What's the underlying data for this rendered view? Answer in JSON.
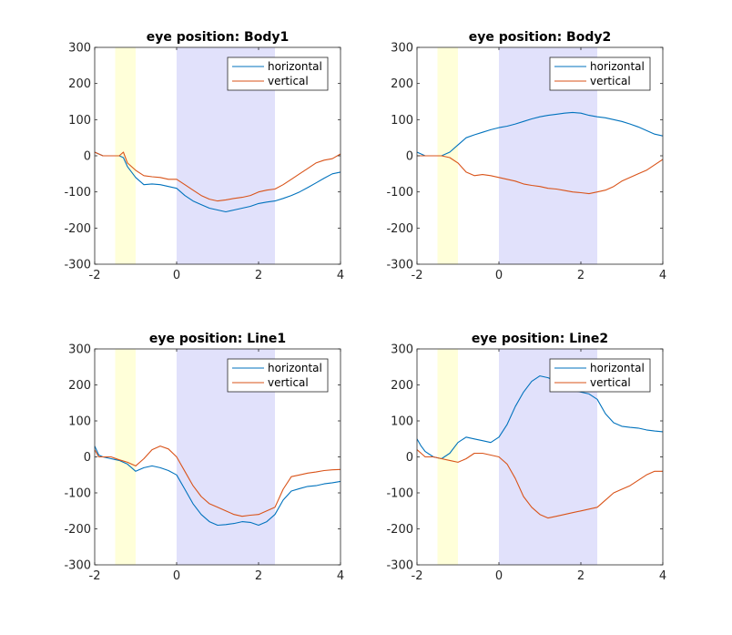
{
  "chart_data": [
    {
      "type": "line",
      "title": "eye position: Body1",
      "xlim": [
        -2,
        4
      ],
      "ylim": [
        -300,
        300
      ],
      "xticks": [
        "-2",
        "0",
        "2",
        "4"
      ],
      "yticks": [
        "300",
        "200",
        "100",
        "0",
        "-100",
        "-200",
        "-300"
      ],
      "shaded_regions": [
        {
          "from": -1.5,
          "to": -1.0,
          "color": "#ffffd9"
        },
        {
          "from": 0.0,
          "to": 2.4,
          "color": "#e1e1fb"
        }
      ],
      "legend": {
        "location": "top-right",
        "entries": [
          "horizontal",
          "vertical"
        ]
      },
      "series": [
        {
          "name": "horizontal",
          "color": "#0072bd",
          "x": [
            -2.0,
            -1.8,
            -1.6,
            -1.4,
            -1.3,
            -1.2,
            -1.0,
            -0.8,
            -0.6,
            -0.4,
            -0.2,
            0.0,
            0.2,
            0.4,
            0.6,
            0.8,
            1.0,
            1.2,
            1.4,
            1.6,
            1.8,
            2.0,
            2.2,
            2.4,
            2.6,
            2.8,
            3.0,
            3.2,
            3.4,
            3.6,
            3.8,
            4.0
          ],
          "y": [
            10,
            0,
            0,
            0,
            -5,
            -30,
            -60,
            -80,
            -78,
            -80,
            -85,
            -90,
            -110,
            -125,
            -135,
            -145,
            -150,
            -155,
            -150,
            -145,
            -140,
            -132,
            -128,
            -125,
            -118,
            -110,
            -100,
            -88,
            -75,
            -62,
            -50,
            -45
          ]
        },
        {
          "name": "vertical",
          "color": "#d95319",
          "x": [
            -2.0,
            -1.8,
            -1.6,
            -1.4,
            -1.3,
            -1.2,
            -1.0,
            -0.8,
            -0.6,
            -0.4,
            -0.2,
            0.0,
            0.2,
            0.4,
            0.6,
            0.8,
            1.0,
            1.2,
            1.4,
            1.6,
            1.8,
            2.0,
            2.2,
            2.4,
            2.6,
            2.8,
            3.0,
            3.2,
            3.4,
            3.6,
            3.8,
            4.0
          ],
          "y": [
            10,
            0,
            0,
            0,
            10,
            -20,
            -40,
            -55,
            -58,
            -60,
            -65,
            -65,
            -80,
            -95,
            -110,
            -120,
            -125,
            -122,
            -118,
            -115,
            -110,
            -100,
            -95,
            -92,
            -80,
            -65,
            -50,
            -35,
            -20,
            -12,
            -8,
            5
          ]
        }
      ]
    },
    {
      "type": "line",
      "title": "eye position: Body2",
      "xlim": [
        -2,
        4
      ],
      "ylim": [
        -300,
        300
      ],
      "xticks": [
        "-2",
        "0",
        "2",
        "4"
      ],
      "yticks": [
        "300",
        "200",
        "100",
        "0",
        "-100",
        "-200",
        "-300"
      ],
      "shaded_regions": [
        {
          "from": -1.5,
          "to": -1.0,
          "color": "#ffffd9"
        },
        {
          "from": 0.0,
          "to": 2.4,
          "color": "#e1e1fb"
        }
      ],
      "legend": {
        "location": "top-right",
        "entries": [
          "horizontal",
          "vertical"
        ]
      },
      "series": [
        {
          "name": "horizontal",
          "color": "#0072bd",
          "x": [
            -2.0,
            -1.8,
            -1.6,
            -1.4,
            -1.2,
            -1.0,
            -0.8,
            -0.6,
            -0.4,
            -0.2,
            0.0,
            0.2,
            0.4,
            0.6,
            0.8,
            1.0,
            1.2,
            1.4,
            1.6,
            1.8,
            2.0,
            2.2,
            2.4,
            2.6,
            2.8,
            3.0,
            3.2,
            3.4,
            3.6,
            3.8,
            4.0
          ],
          "y": [
            10,
            0,
            0,
            0,
            10,
            30,
            50,
            58,
            65,
            72,
            78,
            82,
            88,
            95,
            102,
            108,
            112,
            115,
            118,
            120,
            118,
            112,
            108,
            105,
            100,
            95,
            88,
            80,
            70,
            60,
            55
          ]
        },
        {
          "name": "vertical",
          "color": "#d95319",
          "x": [
            -2.0,
            -1.8,
            -1.6,
            -1.4,
            -1.2,
            -1.0,
            -0.8,
            -0.6,
            -0.4,
            -0.2,
            0.0,
            0.2,
            0.4,
            0.6,
            0.8,
            1.0,
            1.2,
            1.4,
            1.6,
            1.8,
            2.0,
            2.2,
            2.4,
            2.6,
            2.8,
            3.0,
            3.2,
            3.4,
            3.6,
            3.8,
            4.0
          ],
          "y": [
            0,
            0,
            0,
            0,
            -5,
            -20,
            -45,
            -55,
            -52,
            -55,
            -60,
            -65,
            -70,
            -78,
            -82,
            -85,
            -90,
            -92,
            -96,
            -100,
            -102,
            -105,
            -100,
            -95,
            -85,
            -70,
            -60,
            -50,
            -40,
            -25,
            -10
          ]
        }
      ]
    },
    {
      "type": "line",
      "title": "eye position: Line1",
      "xlim": [
        -2,
        4
      ],
      "ylim": [
        -300,
        300
      ],
      "xticks": [
        "-2",
        "0",
        "2",
        "4"
      ],
      "yticks": [
        "300",
        "200",
        "100",
        "0",
        "-100",
        "-200",
        "-300"
      ],
      "shaded_regions": [
        {
          "from": -1.5,
          "to": -1.0,
          "color": "#ffffd9"
        },
        {
          "from": 0.0,
          "to": 2.4,
          "color": "#e1e1fb"
        }
      ],
      "legend": {
        "location": "top-right",
        "entries": [
          "horizontal",
          "vertical"
        ]
      },
      "series": [
        {
          "name": "horizontal",
          "color": "#0072bd",
          "x": [
            -2.0,
            -1.9,
            -1.8,
            -1.6,
            -1.4,
            -1.2,
            -1.0,
            -0.8,
            -0.6,
            -0.4,
            -0.2,
            0.0,
            0.2,
            0.4,
            0.6,
            0.8,
            1.0,
            1.2,
            1.4,
            1.6,
            1.8,
            2.0,
            2.2,
            2.4,
            2.6,
            2.8,
            3.0,
            3.2,
            3.4,
            3.6,
            3.8,
            4.0
          ],
          "y": [
            30,
            5,
            0,
            -5,
            -10,
            -20,
            -40,
            -30,
            -25,
            -30,
            -38,
            -50,
            -90,
            -130,
            -160,
            -180,
            -190,
            -188,
            -185,
            -180,
            -182,
            -190,
            -180,
            -160,
            -120,
            -95,
            -88,
            -82,
            -80,
            -75,
            -72,
            -68
          ]
        },
        {
          "name": "vertical",
          "color": "#d95319",
          "x": [
            -2.0,
            -1.9,
            -1.8,
            -1.6,
            -1.4,
            -1.2,
            -1.0,
            -0.8,
            -0.6,
            -0.4,
            -0.2,
            0.0,
            0.2,
            0.4,
            0.6,
            0.8,
            1.0,
            1.2,
            1.4,
            1.6,
            1.8,
            2.0,
            2.2,
            2.4,
            2.6,
            2.8,
            3.0,
            3.2,
            3.4,
            3.6,
            3.8,
            4.0
          ],
          "y": [
            20,
            0,
            0,
            0,
            -8,
            -15,
            -25,
            -5,
            20,
            30,
            22,
            0,
            -40,
            -80,
            -110,
            -130,
            -140,
            -150,
            -160,
            -165,
            -162,
            -160,
            -150,
            -140,
            -90,
            -55,
            -50,
            -45,
            -42,
            -38,
            -36,
            -35
          ]
        }
      ]
    },
    {
      "type": "line",
      "title": "eye position: Line2",
      "xlim": [
        -2,
        4
      ],
      "ylim": [
        -300,
        300
      ],
      "xticks": [
        "-2",
        "0",
        "2",
        "4"
      ],
      "yticks": [
        "300",
        "200",
        "100",
        "0",
        "-100",
        "-200",
        "-300"
      ],
      "shaded_regions": [
        {
          "from": -1.5,
          "to": -1.0,
          "color": "#ffffd9"
        },
        {
          "from": 0.0,
          "to": 2.4,
          "color": "#e1e1fb"
        }
      ],
      "legend": {
        "location": "top-right",
        "entries": [
          "horizontal",
          "vertical"
        ]
      },
      "series": [
        {
          "name": "horizontal",
          "color": "#0072bd",
          "x": [
            -2.0,
            -1.9,
            -1.8,
            -1.6,
            -1.4,
            -1.2,
            -1.0,
            -0.8,
            -0.6,
            -0.4,
            -0.2,
            0.0,
            0.2,
            0.4,
            0.6,
            0.8,
            1.0,
            1.2,
            1.4,
            1.6,
            1.8,
            2.0,
            2.2,
            2.4,
            2.6,
            2.8,
            3.0,
            3.2,
            3.4,
            3.6,
            3.8,
            4.0
          ],
          "y": [
            50,
            30,
            15,
            0,
            -5,
            10,
            40,
            55,
            50,
            45,
            40,
            55,
            90,
            140,
            180,
            210,
            225,
            220,
            210,
            195,
            185,
            180,
            175,
            160,
            120,
            95,
            85,
            82,
            80,
            75,
            72,
            70
          ]
        },
        {
          "name": "vertical",
          "color": "#d95319",
          "x": [
            -2.0,
            -1.9,
            -1.8,
            -1.6,
            -1.4,
            -1.2,
            -1.0,
            -0.8,
            -0.6,
            -0.4,
            -0.2,
            0.0,
            0.2,
            0.4,
            0.6,
            0.8,
            1.0,
            1.2,
            1.4,
            1.6,
            1.8,
            2.0,
            2.2,
            2.4,
            2.6,
            2.8,
            3.0,
            3.2,
            3.4,
            3.6,
            3.8,
            4.0
          ],
          "y": [
            20,
            10,
            0,
            0,
            -5,
            -10,
            -15,
            -5,
            10,
            10,
            5,
            0,
            -20,
            -60,
            -110,
            -140,
            -160,
            -170,
            -165,
            -160,
            -155,
            -150,
            -145,
            -140,
            -120,
            -100,
            -90,
            -80,
            -65,
            -50,
            -40,
            -40
          ]
        }
      ]
    }
  ]
}
